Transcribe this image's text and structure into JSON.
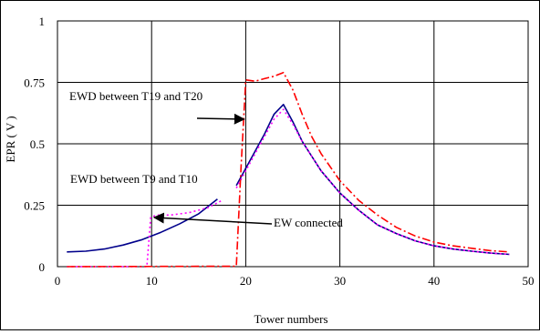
{
  "chart_data": {
    "type": "line",
    "xlabel": "Tower numbers",
    "ylabel": "EPR ( V )",
    "xlim": [
      0,
      50
    ],
    "ylim": [
      0,
      1
    ],
    "xticks": [
      "0",
      "10",
      "20",
      "30",
      "40",
      "50"
    ],
    "yticks": [
      "0",
      "0.25",
      "0.5",
      "0.75",
      "1"
    ],
    "grid": true,
    "series": [
      {
        "name": "EW connected",
        "color": "#00008b",
        "style": "solid",
        "segments": [
          [
            [
              1,
              0.06
            ],
            [
              3,
              0.063
            ],
            [
              5,
              0.072
            ],
            [
              7,
              0.088
            ],
            [
              9,
              0.11
            ],
            [
              11,
              0.14
            ],
            [
              13,
              0.175
            ],
            [
              15,
              0.215
            ],
            [
              17,
              0.275
            ]
          ],
          [
            [
              19,
              0.33
            ],
            [
              20,
              0.4
            ],
            [
              21,
              0.47
            ],
            [
              22,
              0.54
            ],
            [
              23,
              0.62
            ],
            [
              24,
              0.66
            ],
            [
              25,
              0.59
            ],
            [
              26,
              0.51
            ],
            [
              27,
              0.45
            ],
            [
              28,
              0.39
            ],
            [
              30,
              0.3
            ],
            [
              32,
              0.23
            ],
            [
              34,
              0.17
            ],
            [
              36,
              0.135
            ],
            [
              38,
              0.105
            ],
            [
              40,
              0.085
            ],
            [
              42,
              0.072
            ],
            [
              44,
              0.063
            ],
            [
              46,
              0.055
            ],
            [
              48,
              0.05
            ]
          ]
        ]
      },
      {
        "name": "EWD between T9 and T10",
        "color": "#ff00ff",
        "style": "dotted",
        "segments": [
          [
            [
              1,
              0.0
            ],
            [
              9.5,
              0.0
            ],
            [
              9.9,
              0.2
            ],
            [
              10.5,
              0.21
            ],
            [
              12,
              0.21
            ],
            [
              14,
              0.22
            ],
            [
              16,
              0.24
            ],
            [
              17.5,
              0.27
            ]
          ],
          [
            [
              19,
              0.32
            ],
            [
              20,
              0.39
            ],
            [
              21,
              0.46
            ],
            [
              22,
              0.53
            ],
            [
              23,
              0.6
            ],
            [
              24,
              0.64
            ],
            [
              25,
              0.58
            ],
            [
              26,
              0.51
            ],
            [
              27,
              0.45
            ],
            [
              28,
              0.39
            ],
            [
              30,
              0.3
            ],
            [
              32,
              0.23
            ],
            [
              34,
              0.17
            ],
            [
              36,
              0.135
            ],
            [
              38,
              0.105
            ],
            [
              40,
              0.085
            ],
            [
              42,
              0.072
            ],
            [
              44,
              0.063
            ],
            [
              46,
              0.055
            ],
            [
              48,
              0.05
            ]
          ]
        ]
      },
      {
        "name": "EWD between T19 and T20",
        "color": "#ff0000",
        "style": "dashdot",
        "segments": [
          [
            [
              1,
              0.0
            ],
            [
              19,
              0.002
            ],
            [
              19.5,
              0.4
            ],
            [
              20,
              0.76
            ],
            [
              21,
              0.755
            ],
            [
              22,
              0.765
            ],
            [
              23,
              0.775
            ],
            [
              24,
              0.79
            ],
            [
              25,
              0.72
            ],
            [
              26,
              0.62
            ],
            [
              27,
              0.53
            ],
            [
              28,
              0.46
            ],
            [
              30,
              0.35
            ],
            [
              32,
              0.27
            ],
            [
              34,
              0.21
            ],
            [
              36,
              0.16
            ],
            [
              38,
              0.125
            ],
            [
              40,
              0.1
            ],
            [
              42,
              0.085
            ],
            [
              44,
              0.075
            ],
            [
              46,
              0.065
            ],
            [
              48,
              0.06
            ]
          ]
        ]
      }
    ],
    "annotations": [
      {
        "text": "EWD between  T19 and T20",
        "arrow_to": [
          19.8,
          0.6
        ]
      },
      {
        "text": "EWD between T9 and T10",
        "arrow_to": null
      },
      {
        "text": "EW connected",
        "arrow_to": [
          10.3,
          0.2
        ]
      }
    ]
  }
}
